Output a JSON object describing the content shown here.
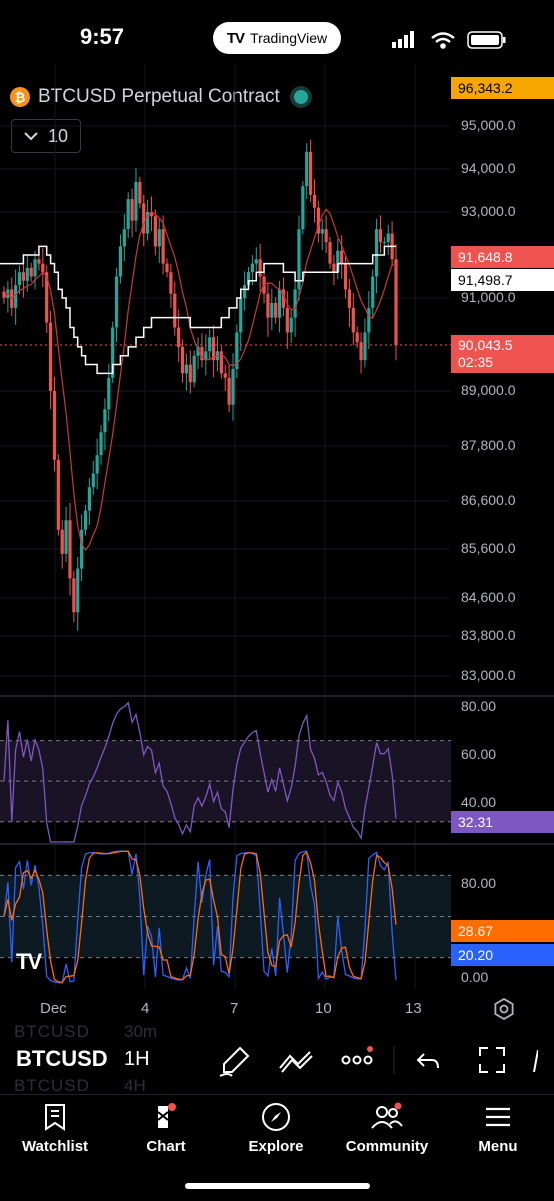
{
  "status": {
    "time": "9:57",
    "pill_label": "TradingView"
  },
  "header": {
    "symbol_title": "BTCUSD Perpetual Contract",
    "coin_glyph": "₿",
    "interval_value": "10"
  },
  "price_axis": [
    "95,000.0",
    "94,000.0",
    "93,000.0",
    "91,000.0",
    "89,000.0",
    "87,800.0",
    "86,600.0",
    "85,600.0",
    "84,600.0",
    "83,800.0",
    "83,000.0"
  ],
  "price_tags": {
    "high": "96,343.2",
    "ma_red": "91,648.8",
    "ma_white": "91,498.7",
    "last": "90,043.5",
    "countdown": "02:35"
  },
  "rsi": {
    "axis": [
      "80.00",
      "60.00",
      "40.00"
    ],
    "value": "32.31"
  },
  "stoch": {
    "axis": [
      "80.00",
      "0.00"
    ],
    "k_value": "28.67",
    "d_value": "20.20"
  },
  "x_axis": [
    "Dec",
    "4",
    "7",
    "10",
    "13"
  ],
  "toolbar": {
    "symbol": "BTCUSD",
    "timeframe": "1H",
    "ghost_above": "BTCUSD",
    "ghost_above_tf": "30m",
    "ghost_below": "BTCUSD",
    "ghost_below_tf": "4H"
  },
  "tabs": [
    {
      "label": "Watchlist",
      "icon": "bookmark-icon"
    },
    {
      "label": "Chart",
      "icon": "chart-icon"
    },
    {
      "label": "Explore",
      "icon": "compass-icon"
    },
    {
      "label": "Community",
      "icon": "community-icon"
    },
    {
      "label": "Menu",
      "icon": "menu-icon"
    }
  ],
  "colors": {
    "up": "#26a69a",
    "down": "#ef5350",
    "rsi": "#7e57c2",
    "stoch_k": "#2962ff",
    "stoch_d": "#ff6d00",
    "accent_high": "#f7a600"
  },
  "chart_data": {
    "type": "candlestick",
    "instrument": "BTCUSD Perpetual Contract",
    "interval": "1H",
    "y_range": [
      83000,
      96343.2
    ],
    "x_ticks": [
      "Dec",
      "4",
      "7",
      "10",
      "13"
    ],
    "closes": [
      91000,
      91200,
      90800,
      91300,
      91600,
      91400,
      91700,
      91500,
      91900,
      91800,
      91600,
      90500,
      89000,
      87500,
      86000,
      85500,
      86200,
      85000,
      84300,
      85200,
      86000,
      86400,
      86900,
      87200,
      87600,
      88100,
      88600,
      89300,
      90400,
      91500,
      92200,
      92600,
      93300,
      92800,
      93700,
      93200,
      92500,
      93000,
      92900,
      92200,
      92600,
      91800,
      91600,
      91100,
      90400,
      90000,
      89400,
      89600,
      89200,
      89800,
      90000,
      89700,
      89900,
      90200,
      89700,
      89900,
      89400,
      89300,
      88700,
      89500,
      90300,
      91000,
      91300,
      91600,
      91800,
      91900,
      91500,
      91100,
      90600,
      90900,
      90600,
      91200,
      90800,
      90300,
      90600,
      91200,
      92600,
      93600,
      94400,
      93400,
      93100,
      92500,
      92600,
      92300,
      91800,
      91600,
      92100,
      91800,
      91200,
      90800,
      90300,
      90100,
      89700,
      90300,
      90800,
      91500,
      92600,
      92300,
      92300,
      92500,
      91900,
      90043.5
    ],
    "indicators": {
      "ma_red_last": 91648.8,
      "ma_white_last": 91498.7,
      "rsi_last": 32.31,
      "stoch_k_last": 28.67,
      "stoch_d_last": 20.2
    }
  }
}
